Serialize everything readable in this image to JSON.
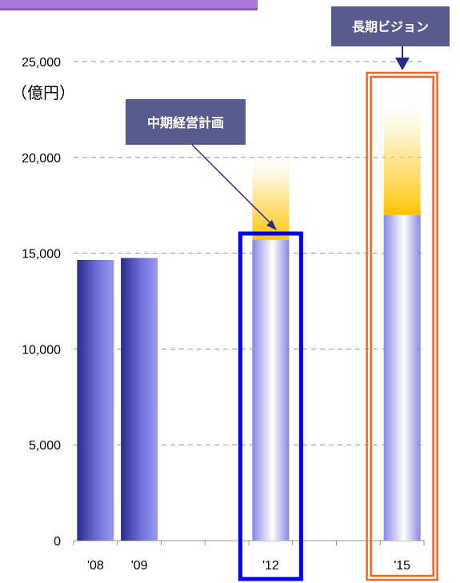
{
  "chart_data": {
    "type": "bar",
    "unit_label": "（億円）",
    "y_ticks": [
      "0",
      "5,000",
      "10,000",
      "15,000",
      "20,000",
      "25,000"
    ],
    "ylim": [
      0,
      25000
    ],
    "categories": [
      "'08",
      "'09",
      "",
      "",
      "'12",
      "",
      "",
      "'15"
    ],
    "series": [
      {
        "values": [
          14650,
          14750,
          null,
          null,
          15700,
          null,
          null,
          17000
        ]
      }
    ],
    "target_extensions": [
      {
        "category": "'12",
        "from": 15700,
        "to": 20500
      },
      {
        "category": "'15",
        "from": 17000,
        "to": 23500
      }
    ],
    "callouts": [
      {
        "text": "中期経営計画",
        "category": "'12"
      },
      {
        "text": "長期ビジョン",
        "category": "'15"
      }
    ],
    "grid": true,
    "colors": {
      "actual_bar": "#5858c8",
      "plan_bar": "#8c8ce8",
      "target_glow": "#ffc400",
      "mid_term_box": "#0000ee",
      "long_term_box": "#ee6622",
      "callout_bg": "#585c8c",
      "header_strip": "#a878d8"
    },
    "icons": [
      "callout-arrow-icon"
    ]
  }
}
